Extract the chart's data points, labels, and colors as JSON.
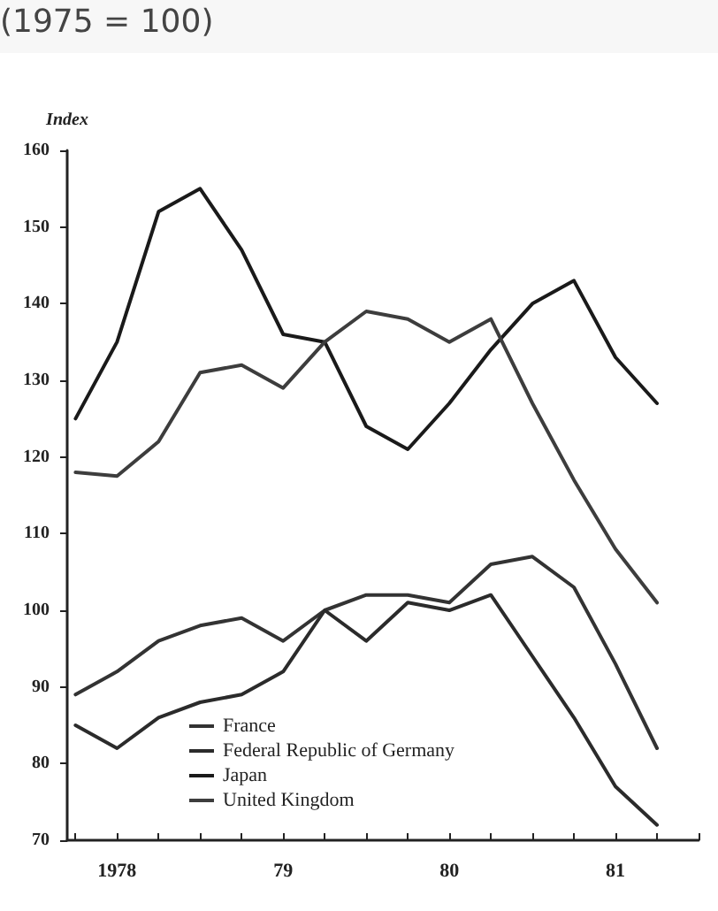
{
  "chart_data": {
    "type": "line",
    "subtitle": "(1975 = 100)",
    "ylabel": "Index",
    "x": [
      1977.75,
      1978,
      1978.25,
      1978.5,
      1978.75,
      1979,
      1979.25,
      1979.5,
      1979.75,
      1980,
      1980.25,
      1980.5,
      1980.75,
      1981,
      1981.25
    ],
    "series": [
      {
        "name": "France",
        "color": "#333333",
        "values": [
          89,
          92,
          96,
          98,
          99,
          96,
          100,
          102,
          102,
          101,
          106,
          107,
          103,
          93,
          82
        ]
      },
      {
        "name": "Federal Republic of Germany",
        "color": "#2b2b2b",
        "values": [
          85,
          82,
          86,
          88,
          89,
          92,
          100,
          96,
          101,
          100,
          102,
          94,
          86,
          77,
          72
        ]
      },
      {
        "name": "Japan",
        "color": "#1a1a1a",
        "values": [
          125,
          135,
          152,
          155,
          147,
          136,
          135,
          124,
          121,
          127,
          134,
          140,
          143,
          133,
          127
        ]
      },
      {
        "name": "United Kingdom",
        "color": "#3d3d3d",
        "values": [
          118,
          117.5,
          122,
          131,
          132,
          129,
          135,
          139,
          138,
          135,
          138,
          127,
          117,
          108,
          101
        ]
      }
    ],
    "xlim": [
      1977.7,
      1981.5
    ],
    "xticks": [
      {
        "value": 1977.75,
        "label": null
      },
      {
        "value": 1978,
        "label": "1978"
      },
      {
        "value": 1978.25,
        "label": null
      },
      {
        "value": 1978.5,
        "label": null
      },
      {
        "value": 1978.75,
        "label": null
      },
      {
        "value": 1979,
        "label": "79"
      },
      {
        "value": 1979.25,
        "label": null
      },
      {
        "value": 1979.5,
        "label": null
      },
      {
        "value": 1979.75,
        "label": null
      },
      {
        "value": 1980,
        "label": "80"
      },
      {
        "value": 1980.25,
        "label": null
      },
      {
        "value": 1980.5,
        "label": null
      },
      {
        "value": 1980.75,
        "label": null
      },
      {
        "value": 1981,
        "label": "81"
      },
      {
        "value": 1981.25,
        "label": null
      },
      {
        "value": 1981.5,
        "label": null
      }
    ],
    "ylim": [
      70,
      160
    ],
    "yticks": [
      70,
      80,
      90,
      100,
      110,
      120,
      130,
      140,
      150,
      160
    ],
    "grid": false,
    "legend": "bottom left",
    "marker": "none",
    "line_style": "solid"
  }
}
